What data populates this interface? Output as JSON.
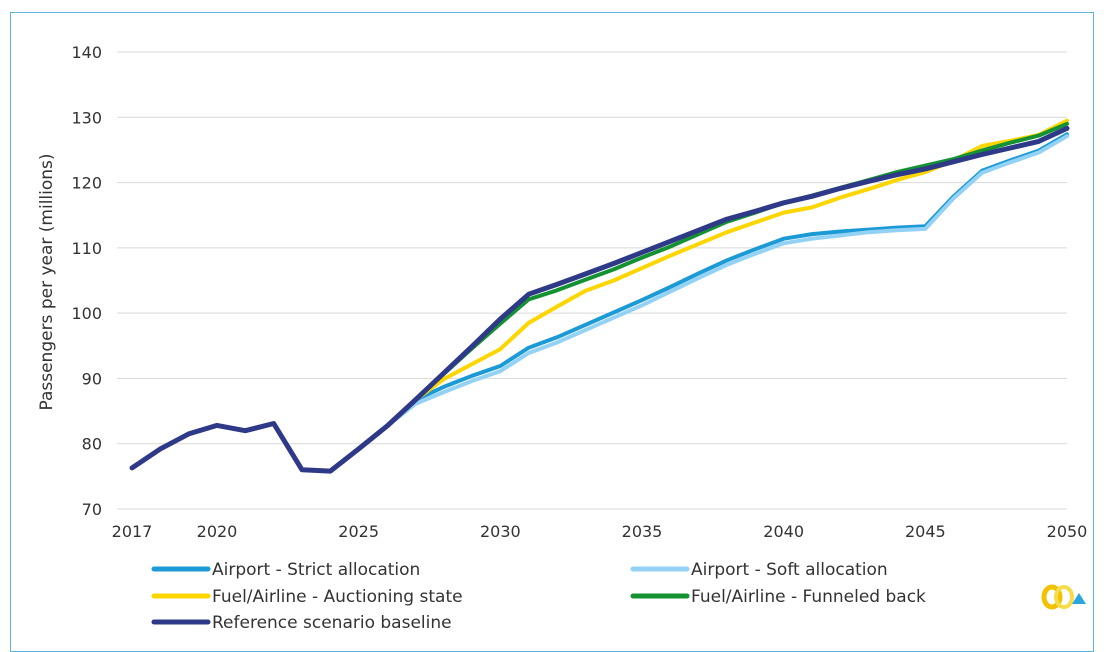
{
  "chart_data": {
    "type": "line",
    "title": "",
    "xlabel": "",
    "ylabel": "Passengers per year (millions)",
    "xlim": [
      2017,
      2050
    ],
    "ylim": [
      70,
      140
    ],
    "x_ticks": [
      2017,
      2020,
      2025,
      2030,
      2035,
      2040,
      2045,
      2050
    ],
    "y_ticks": [
      70,
      80,
      90,
      100,
      110,
      120,
      130,
      140
    ],
    "grid": "horizontal",
    "legend_position": "bottom",
    "x": [
      2017,
      2018,
      2019,
      2020,
      2021,
      2022,
      2023,
      2024,
      2025,
      2026,
      2027,
      2028,
      2029,
      2030,
      2031,
      2032,
      2033,
      2034,
      2035,
      2036,
      2037,
      2038,
      2039,
      2040,
      2041,
      2042,
      2043,
      2044,
      2045,
      2046,
      2047,
      2048,
      2049,
      2050
    ],
    "series": [
      {
        "name": "Airport - Strict allocation",
        "color": "#1b9ad6",
        "width": 4,
        "values": [
          76.3,
          79.2,
          81.5,
          82.8,
          82.0,
          83.1,
          76.0,
          75.8,
          79.2,
          82.7,
          86.7,
          88.7,
          90.4,
          91.9,
          94.7,
          96.3,
          98.2,
          100.1,
          102.0,
          104.0,
          106.1,
          108.1,
          109.8,
          111.4,
          112.1,
          112.5,
          112.8,
          113.1,
          113.3,
          117.9,
          121.8,
          123.4,
          124.9,
          127.4
        ]
      },
      {
        "name": "Airport - Soft allocation",
        "color": "#93d2f5",
        "width": 4,
        "values": [
          76.3,
          79.2,
          81.5,
          82.8,
          82.0,
          83.1,
          76.0,
          75.8,
          79.2,
          82.7,
          86.1,
          87.9,
          89.6,
          91.1,
          93.9,
          95.5,
          97.4,
          99.3,
          101.2,
          103.3,
          105.4,
          107.4,
          109.1,
          110.7,
          111.4,
          111.9,
          112.4,
          112.7,
          112.9,
          117.6,
          121.5,
          123.1,
          124.6,
          127.1
        ]
      },
      {
        "name": "Fuel/Airline - Auctioning state",
        "color": "#fdd600",
        "width": 4,
        "values": [
          76.3,
          79.2,
          81.5,
          82.8,
          82.0,
          83.1,
          76.0,
          75.8,
          79.2,
          82.7,
          86.7,
          89.9,
          92.2,
          94.5,
          98.5,
          101.0,
          103.4,
          105.0,
          106.9,
          108.8,
          110.6,
          112.4,
          113.9,
          115.4,
          116.2,
          117.7,
          119.0,
          120.4,
          121.6,
          123.4,
          125.6,
          126.4,
          127.3,
          129.5
        ]
      },
      {
        "name": "Fuel/Airline - Funneled back",
        "color": "#149132",
        "width": 4,
        "values": [
          76.3,
          79.2,
          81.5,
          82.8,
          82.0,
          83.1,
          76.0,
          75.8,
          79.2,
          82.7,
          86.7,
          90.7,
          94.6,
          98.4,
          102.1,
          103.5,
          105.1,
          106.7,
          108.5,
          110.2,
          112.1,
          114.0,
          115.4,
          116.9,
          118.0,
          119.2,
          120.4,
          121.6,
          122.6,
          123.6,
          124.9,
          126.1,
          127.2,
          129.0
        ]
      },
      {
        "name": "Reference scenario baseline",
        "color": "#2e3a87",
        "width": 5,
        "values": [
          76.3,
          79.2,
          81.5,
          82.8,
          82.0,
          83.1,
          76.0,
          75.8,
          79.2,
          82.7,
          86.7,
          90.8,
          94.9,
          99.1,
          102.9,
          104.4,
          106.0,
          107.6,
          109.3,
          111.0,
          112.7,
          114.4,
          115.6,
          116.9,
          117.9,
          119.1,
          120.2,
          121.2,
          122.1,
          123.2,
          124.3,
          125.3,
          126.3,
          128.3
        ]
      }
    ]
  },
  "brand": {
    "logo": "corporate-logo"
  }
}
